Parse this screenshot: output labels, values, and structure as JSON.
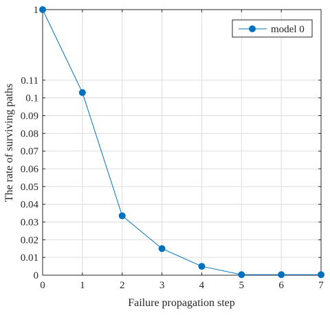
{
  "chart_data": {
    "type": "line",
    "title": "",
    "xlabel": "Failure propagation step",
    "ylabel": "The rate of surviving paths",
    "x": [
      0,
      1,
      2,
      3,
      4,
      5,
      6,
      7
    ],
    "series": [
      {
        "name": "model 0",
        "values": [
          1,
          0.103,
          0.0335,
          0.015,
          0.005,
          0.0003,
          0.0003,
          0.0003
        ],
        "color": "#0072BD"
      }
    ],
    "xlim": [
      0,
      7
    ],
    "ylim": [
      0,
      1
    ],
    "y_scale": "broken: 0-0.12 linear, top tick 1",
    "x_ticks": [
      "0",
      "1",
      "2",
      "3",
      "4",
      "5",
      "6",
      "7"
    ],
    "y_ticks": [
      "0",
      "0.01",
      "0.02",
      "0.03",
      "0.04",
      "0.05",
      "0.06",
      "0.07",
      "0.08",
      "0.09",
      "0.1",
      "0.11",
      "1"
    ],
    "grid": true,
    "legend_position": "top-right"
  }
}
